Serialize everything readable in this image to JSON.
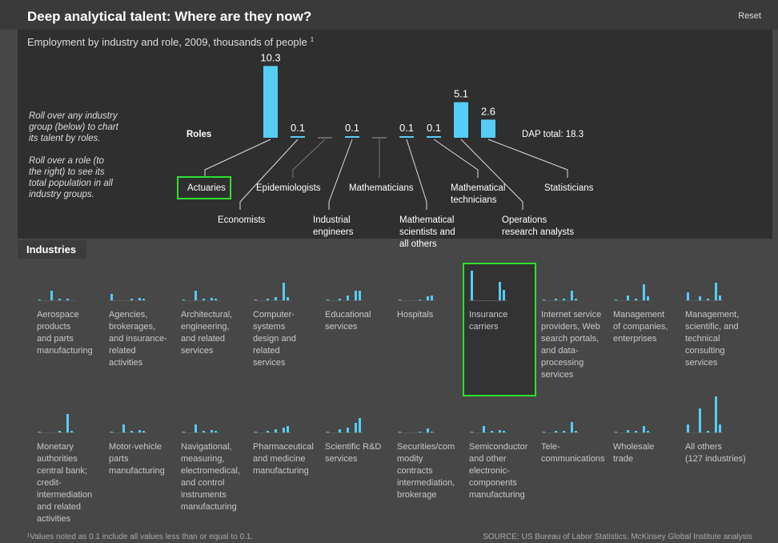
{
  "header": {
    "title": "Deep analytical talent: Where are they now?",
    "reset": "Reset"
  },
  "instructions": [
    "Roll over any industry group (below) to chart its talent by roles.",
    "Roll over a role (to the right) to see its total population in all industry groups."
  ],
  "chart_data": {
    "type": "bar",
    "title": "Employment by industry and role, 2009, thousands of people",
    "title_note": "1",
    "row_label": "Roles",
    "total_label": "DAP total: 18.3",
    "color": "#56cdf5",
    "categories": [
      [
        "Actuaries"
      ],
      [
        "Economists"
      ],
      [
        "Epidemiologists"
      ],
      [
        "Industrial",
        "engineers"
      ],
      [
        "Mathematicians"
      ],
      [
        "Mathematical",
        "scientists and",
        "all others"
      ],
      [
        "Mathematical",
        "technicians"
      ],
      [
        "Operations",
        "research analysts"
      ],
      [
        "Statisticians"
      ]
    ],
    "values": [
      10.3,
      0.1,
      null,
      0.1,
      null,
      0.1,
      0.1,
      5.1,
      2.6
    ]
  },
  "industries": {
    "title": "Industries",
    "items": [
      {
        "lines": [
          "Aerospace",
          "products",
          "and parts",
          "manufacturing"
        ],
        "values": [
          1,
          0,
          0,
          12,
          0,
          2,
          0,
          2,
          0
        ]
      },
      {
        "lines": [
          "Agencies,",
          "brokerages,",
          "and insurance-",
          "related",
          "activities"
        ],
        "values": [
          8,
          0,
          0,
          0,
          0,
          2,
          0,
          3,
          2
        ]
      },
      {
        "lines": [
          "Architectural,",
          "engineering,",
          "and related",
          "services"
        ],
        "values": [
          1,
          0,
          0,
          12,
          0,
          2,
          0,
          3,
          2
        ]
      },
      {
        "lines": [
          "Computer-",
          "systems",
          "design and",
          "related",
          "services"
        ],
        "values": [
          1,
          0,
          0,
          2,
          0,
          4,
          0,
          22,
          4
        ]
      },
      {
        "lines": [
          "Educational",
          "services"
        ],
        "values": [
          1,
          0,
          0,
          2,
          0,
          6,
          0,
          12,
          12
        ]
      },
      {
        "lines": [
          "Hospitals"
        ],
        "values": [
          1,
          0,
          0,
          0,
          0,
          1,
          0,
          5,
          6
        ]
      },
      {
        "lines": [
          "Insurance",
          "carriers"
        ],
        "values": [
          37,
          0,
          0,
          0,
          0,
          0,
          0,
          23,
          13
        ]
      },
      {
        "lines": [
          "Internet service",
          "providers, Web",
          "search portals,",
          "and data-",
          "processing",
          "services"
        ],
        "values": [
          1,
          0,
          0,
          2,
          0,
          2,
          0,
          12,
          2
        ]
      },
      {
        "lines": [
          "Management",
          "of companies,",
          "enterprises"
        ],
        "values": [
          1,
          0,
          0,
          6,
          0,
          2,
          0,
          20,
          5
        ]
      },
      {
        "lines": [
          "Management,",
          "scientific, and",
          "technical",
          "consulting",
          "services"
        ],
        "values": [
          10,
          0,
          0,
          5,
          0,
          2,
          0,
          22,
          6
        ]
      },
      {
        "lines": [
          "Monetary",
          "authorities",
          "central bank;",
          "credit-",
          "intermediation",
          "and related",
          "activities"
        ],
        "values": [
          1,
          0,
          0,
          0,
          0,
          2,
          0,
          23,
          2
        ]
      },
      {
        "lines": [
          "Motor-vehicle",
          "parts",
          "manufacturing"
        ],
        "values": [
          1,
          0,
          0,
          10,
          0,
          2,
          0,
          3,
          2
        ]
      },
      {
        "lines": [
          "Navigational,",
          "measuring,",
          "electromedical,",
          "and control",
          "instruments",
          "manufacturing"
        ],
        "values": [
          1,
          0,
          0,
          10,
          0,
          2,
          0,
          3,
          2
        ]
      },
      {
        "lines": [
          "Pharmaceutical",
          "and medicine",
          "manufacturing"
        ],
        "values": [
          1,
          0,
          0,
          2,
          0,
          4,
          0,
          6,
          8
        ]
      },
      {
        "lines": [
          "Scientific R&D",
          "services"
        ],
        "values": [
          1,
          0,
          0,
          4,
          0,
          6,
          0,
          12,
          18
        ]
      },
      {
        "lines": [
          "Securities/com",
          "modity",
          "contracts",
          "intermediation,",
          "brokerage"
        ],
        "values": [
          1,
          0,
          0,
          0,
          0,
          1,
          0,
          5,
          1
        ]
      },
      {
        "lines": [
          "Semiconductor",
          "and other",
          "electronic-",
          "components",
          "manufacturing"
        ],
        "values": [
          1,
          0,
          0,
          8,
          0,
          2,
          0,
          3,
          2
        ]
      },
      {
        "lines": [
          "Tele-",
          "communications"
        ],
        "values": [
          1,
          0,
          0,
          2,
          0,
          2,
          0,
          13,
          2
        ]
      },
      {
        "lines": [
          "Wholesale",
          "trade"
        ],
        "values": [
          1,
          0,
          0,
          3,
          0,
          2,
          0,
          8,
          2
        ]
      },
      {
        "lines": [
          "All others",
          "(127 industries)"
        ],
        "values": [
          10,
          0,
          0,
          30,
          0,
          2,
          0,
          45,
          10
        ]
      }
    ]
  },
  "footer": {
    "note": "¹Values noted as 0.1 include all values less  than or equal to 0.1.",
    "source": "SOURCE: US Bureau of Labor Statistics, McKinsey Global Institute analysis"
  }
}
